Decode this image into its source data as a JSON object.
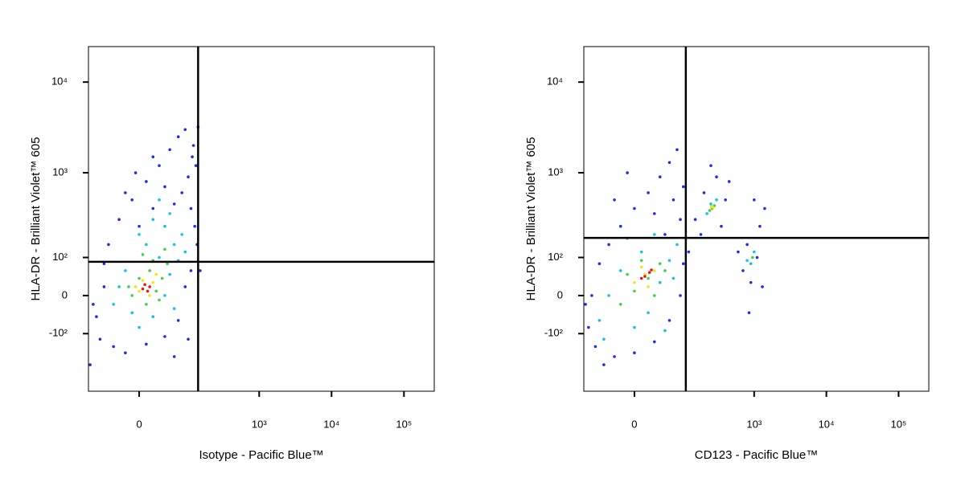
{
  "chart_data": [
    {
      "type": "scatter",
      "scale": "biexponential",
      "xlabel": "Isotype - Pacific Blue™",
      "ylabel": "HLA-DR - Brilliant Violet™ 605",
      "xlim": [
        -106,
        262144
      ],
      "ylim": [
        -500,
        24600
      ],
      "xticks": [
        0,
        {
          "value": 1000,
          "label": "10³"
        },
        {
          "value": 10000,
          "label": "10⁴"
        },
        {
          "value": 100000,
          "label": "10⁵"
        }
      ],
      "yticks": [
        {
          "value": -100,
          "label": "-10²"
        },
        0,
        {
          "value": 100,
          "label": "10²"
        },
        {
          "value": 1000,
          "label": "10³"
        },
        {
          "value": 10000,
          "label": "10⁴"
        }
      ],
      "gate": {
        "x": 140,
        "y": 86
      },
      "series": [
        {
          "color": "#1e2ee6",
          "x": [
            -80,
            -60,
            -70,
            -40,
            -20,
            10,
            40,
            70,
            90,
            110,
            -50,
            -30,
            -10,
            10,
            30,
            50,
            70,
            90,
            120,
            130,
            100,
            80,
            60,
            40,
            20,
            0,
            -20,
            110,
            125,
            135,
            -60,
            -90,
            140,
            150,
            -100,
            60,
            100,
            20,
            -5,
            115
          ],
          "y": [
            -50,
            20,
            -120,
            -150,
            -180,
            -140,
            -110,
            -60,
            20,
            60,
            150,
            300,
            500,
            800,
            1200,
            1800,
            2500,
            3000,
            2000,
            1200,
            900,
            600,
            450,
            700,
            400,
            250,
            600,
            400,
            250,
            150,
            80,
            -20,
            3200,
            60,
            -250,
            -200,
            -120,
            1500,
            1000,
            1500
          ]
        },
        {
          "color": "#10c4e4",
          "x": [
            -30,
            -10,
            20,
            40,
            50,
            30,
            10,
            0,
            40,
            60,
            70,
            -20,
            -40,
            20,
            50,
            80,
            90,
            60,
            0,
            30
          ],
          "y": [
            20,
            -40,
            -50,
            0,
            50,
            100,
            150,
            200,
            250,
            150,
            90,
            60,
            -20,
            300,
            350,
            200,
            120,
            -30,
            -80,
            500
          ]
        },
        {
          "color": "#3ed24a",
          "x": [
            -10,
            10,
            25,
            35,
            15,
            0,
            -15,
            30,
            20,
            45,
            5,
            40
          ],
          "y": [
            0,
            -20,
            10,
            40,
            60,
            40,
            20,
            -10,
            90,
            80,
            110,
            130
          ]
        },
        {
          "color": "#f2e41a",
          "x": [
            0,
            15,
            20,
            5,
            -5,
            25
          ],
          "y": [
            10,
            0,
            30,
            35,
            20,
            50
          ]
        },
        {
          "color": "#e81414",
          "x": [
            5,
            12,
            8,
            15
          ],
          "y": [
            15,
            10,
            25,
            20
          ]
        }
      ]
    },
    {
      "type": "scatter",
      "scale": "biexponential",
      "xlabel": "CD123 - Pacific Blue™",
      "ylabel": "HLA-DR - Brilliant Violet™ 605",
      "xlim": [
        -106,
        262144
      ],
      "ylim": [
        -500,
        24600
      ],
      "xticks": [
        0,
        {
          "value": 1000,
          "label": "10³"
        },
        {
          "value": 10000,
          "label": "10⁴"
        },
        {
          "value": 100000,
          "label": "10⁵"
        }
      ],
      "yticks": [
        {
          "value": -100,
          "label": "-10²"
        },
        0,
        {
          "value": 100,
          "label": "10²"
        },
        {
          "value": 1000,
          "label": "10³"
        },
        {
          "value": 10000,
          "label": "10⁴"
        }
      ],
      "gate": {
        "x": 109,
        "y": 182
      },
      "series": [
        {
          "color": "#1e2ee6",
          "x": [
            -90,
            -70,
            -50,
            -30,
            0,
            30,
            60,
            90,
            100,
            -80,
            -60,
            -40,
            -20,
            0,
            20,
            40,
            60,
            80,
            -10,
            30,
            70,
            100,
            90,
            -30,
            50,
            150,
            200,
            300,
            400,
            350,
            180,
            250,
            450,
            700,
            900,
            1100,
            800,
            1200,
            1000,
            1400,
            850,
            1300,
            600,
            120,
            -100
          ],
          "y": [
            -80,
            -150,
            -250,
            -200,
            -180,
            -130,
            -60,
            0,
            80,
            0,
            80,
            150,
            250,
            400,
            600,
            900,
            1300,
            1800,
            1000,
            350,
            500,
            700,
            300,
            500,
            200,
            300,
            600,
            900,
            500,
            250,
            200,
            1200,
            800,
            60,
            30,
            100,
            150,
            250,
            500,
            400,
            -40,
            20,
            120,
            120,
            -20
          ]
        },
        {
          "color": "#10c4e4",
          "x": [
            -60,
            -40,
            -20,
            0,
            20,
            40,
            60,
            10,
            -10,
            30,
            70,
            80,
            -50,
            50,
            220,
            300,
            250,
            900,
            1000,
            800
          ],
          "y": [
            -60,
            0,
            60,
            -80,
            -40,
            30,
            90,
            120,
            180,
            200,
            40,
            150,
            -120,
            -90,
            350,
            500,
            450,
            80,
            120,
            90
          ]
        },
        {
          "color": "#3ed24a",
          "x": [
            -20,
            0,
            20,
            40,
            10,
            30,
            -10,
            50,
            240,
            280,
            260,
            950
          ],
          "y": [
            -20,
            10,
            40,
            80,
            90,
            0,
            50,
            60,
            380,
            430,
            400,
            100
          ]
        },
        {
          "color": "#f2e41a",
          "x": [
            0,
            15,
            30,
            20,
            10,
            255,
            270
          ],
          "y": [
            30,
            50,
            60,
            20,
            70,
            420,
            410
          ]
        },
        {
          "color": "#e81414",
          "x": [
            15,
            22,
            10,
            25
          ],
          "y": [
            45,
            55,
            40,
            62
          ]
        }
      ]
    }
  ]
}
